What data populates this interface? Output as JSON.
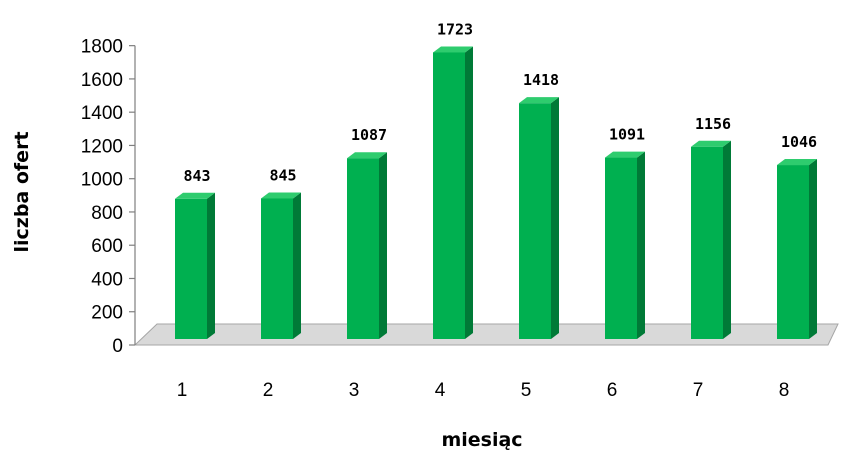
{
  "chart_data": {
    "type": "bar",
    "categories": [
      "1",
      "2",
      "3",
      "4",
      "5",
      "6",
      "7",
      "8"
    ],
    "values": [
      843,
      845,
      1087,
      1723,
      1418,
      1091,
      1156,
      1046
    ],
    "xlabel": "miesiąc",
    "ylabel": "liczba ofert",
    "ylim": [
      0,
      1800
    ],
    "yticks": [
      0,
      200,
      400,
      600,
      800,
      1000,
      1200,
      1400,
      1600,
      1800
    ],
    "grid": false,
    "legend": "none",
    "bar_style": "3d",
    "colors": {
      "bar_front": "#00B050",
      "bar_side": "#007A37",
      "bar_top": "#2ECC6E",
      "floor": "#D9D9D9"
    }
  }
}
